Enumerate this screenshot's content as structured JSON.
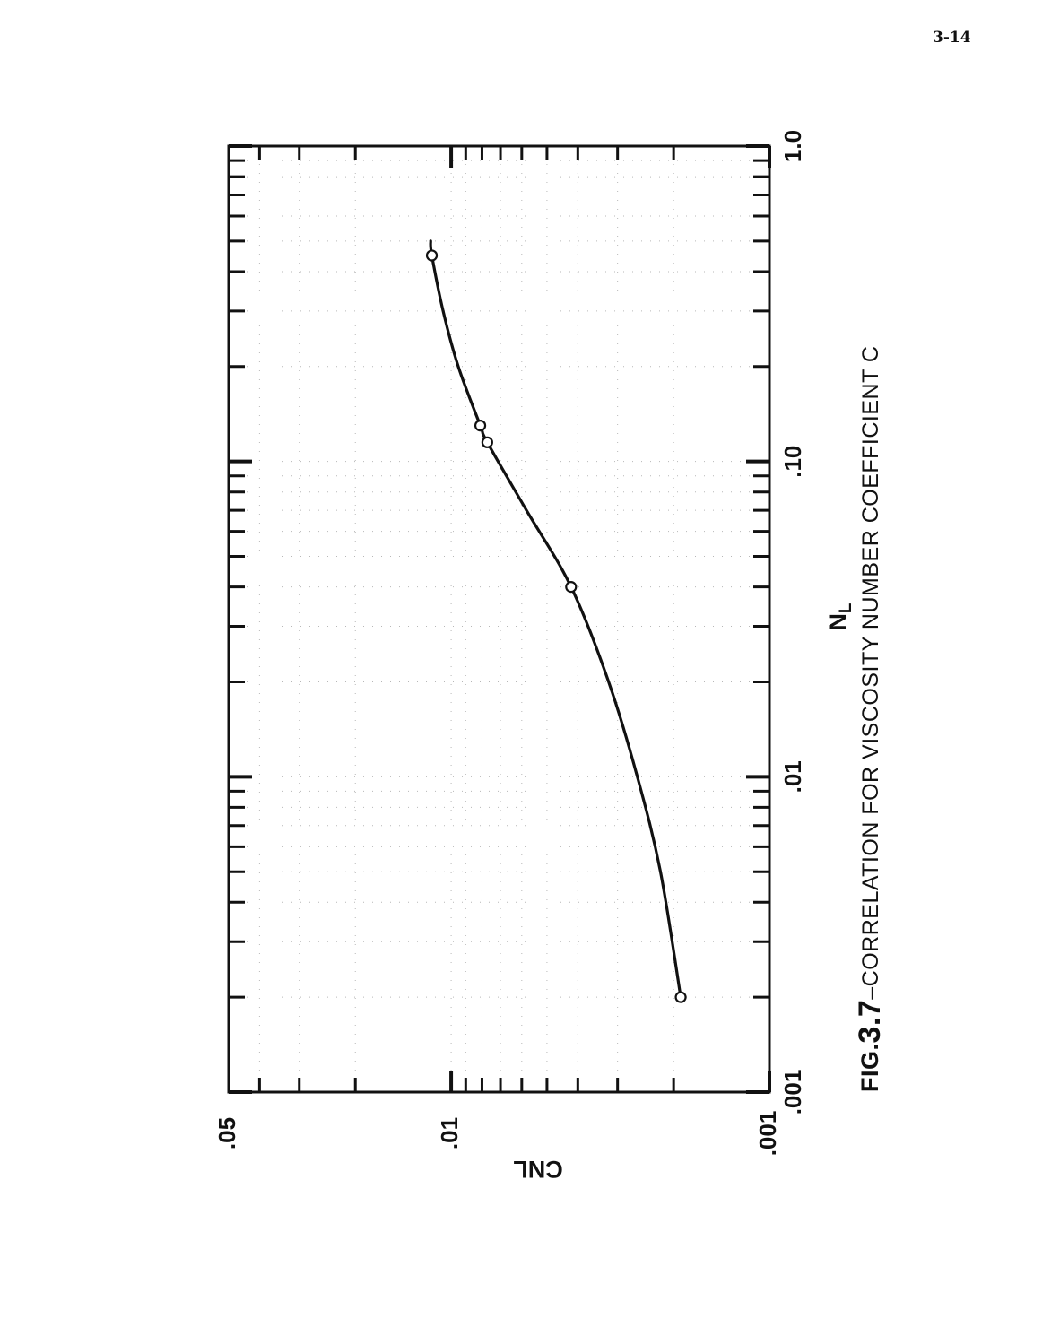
{
  "page_number": "3-14",
  "caption": {
    "prefix": "FIG.",
    "number": "3.7",
    "text": "–CORRELATION FOR VISCOSITY NUMBER  COEFFICIENT C"
  },
  "chart_data": {
    "type": "line",
    "orientation": "rotated 90° counter-clockwise",
    "xlabel": "N",
    "xlabel_subscript": "L",
    "ylabel": "CNL",
    "x_scale": "log",
    "y_scale": "log",
    "xlim": [
      0.001,
      1.0
    ],
    "ylim": [
      0.001,
      0.05
    ],
    "x_tick_labels": [
      {
        "value": 0.001,
        "label": ".001"
      },
      {
        "value": 0.01,
        "label": ".01"
      },
      {
        "value": 0.1,
        "label": ".10"
      },
      {
        "value": 1.0,
        "label": "1.0"
      }
    ],
    "y_tick_labels": [
      {
        "value": 0.001,
        "label": ".001"
      },
      {
        "value": 0.01,
        "label": ".01"
      },
      {
        "value": 0.05,
        "label": ".05"
      }
    ],
    "series": [
      {
        "markers": "open-circle",
        "points": [
          {
            "x": 0.002,
            "y": 0.0019
          },
          {
            "x": 0.04,
            "y": 0.0042
          },
          {
            "x": 0.115,
            "y": 0.0077
          },
          {
            "x": 0.13,
            "y": 0.0081
          },
          {
            "x": 0.45,
            "y": 0.0115
          }
        ],
        "curve": [
          {
            "x": 0.002,
            "y": 0.0019
          },
          {
            "x": 0.005,
            "y": 0.0022
          },
          {
            "x": 0.01,
            "y": 0.0026
          },
          {
            "x": 0.02,
            "y": 0.0032
          },
          {
            "x": 0.04,
            "y": 0.0042
          },
          {
            "x": 0.07,
            "y": 0.0058
          },
          {
            "x": 0.115,
            "y": 0.0077
          },
          {
            "x": 0.13,
            "y": 0.0081
          },
          {
            "x": 0.2,
            "y": 0.0095
          },
          {
            "x": 0.3,
            "y": 0.0106
          },
          {
            "x": 0.45,
            "y": 0.0115
          },
          {
            "x": 0.5,
            "y": 0.0116
          }
        ]
      }
    ]
  }
}
